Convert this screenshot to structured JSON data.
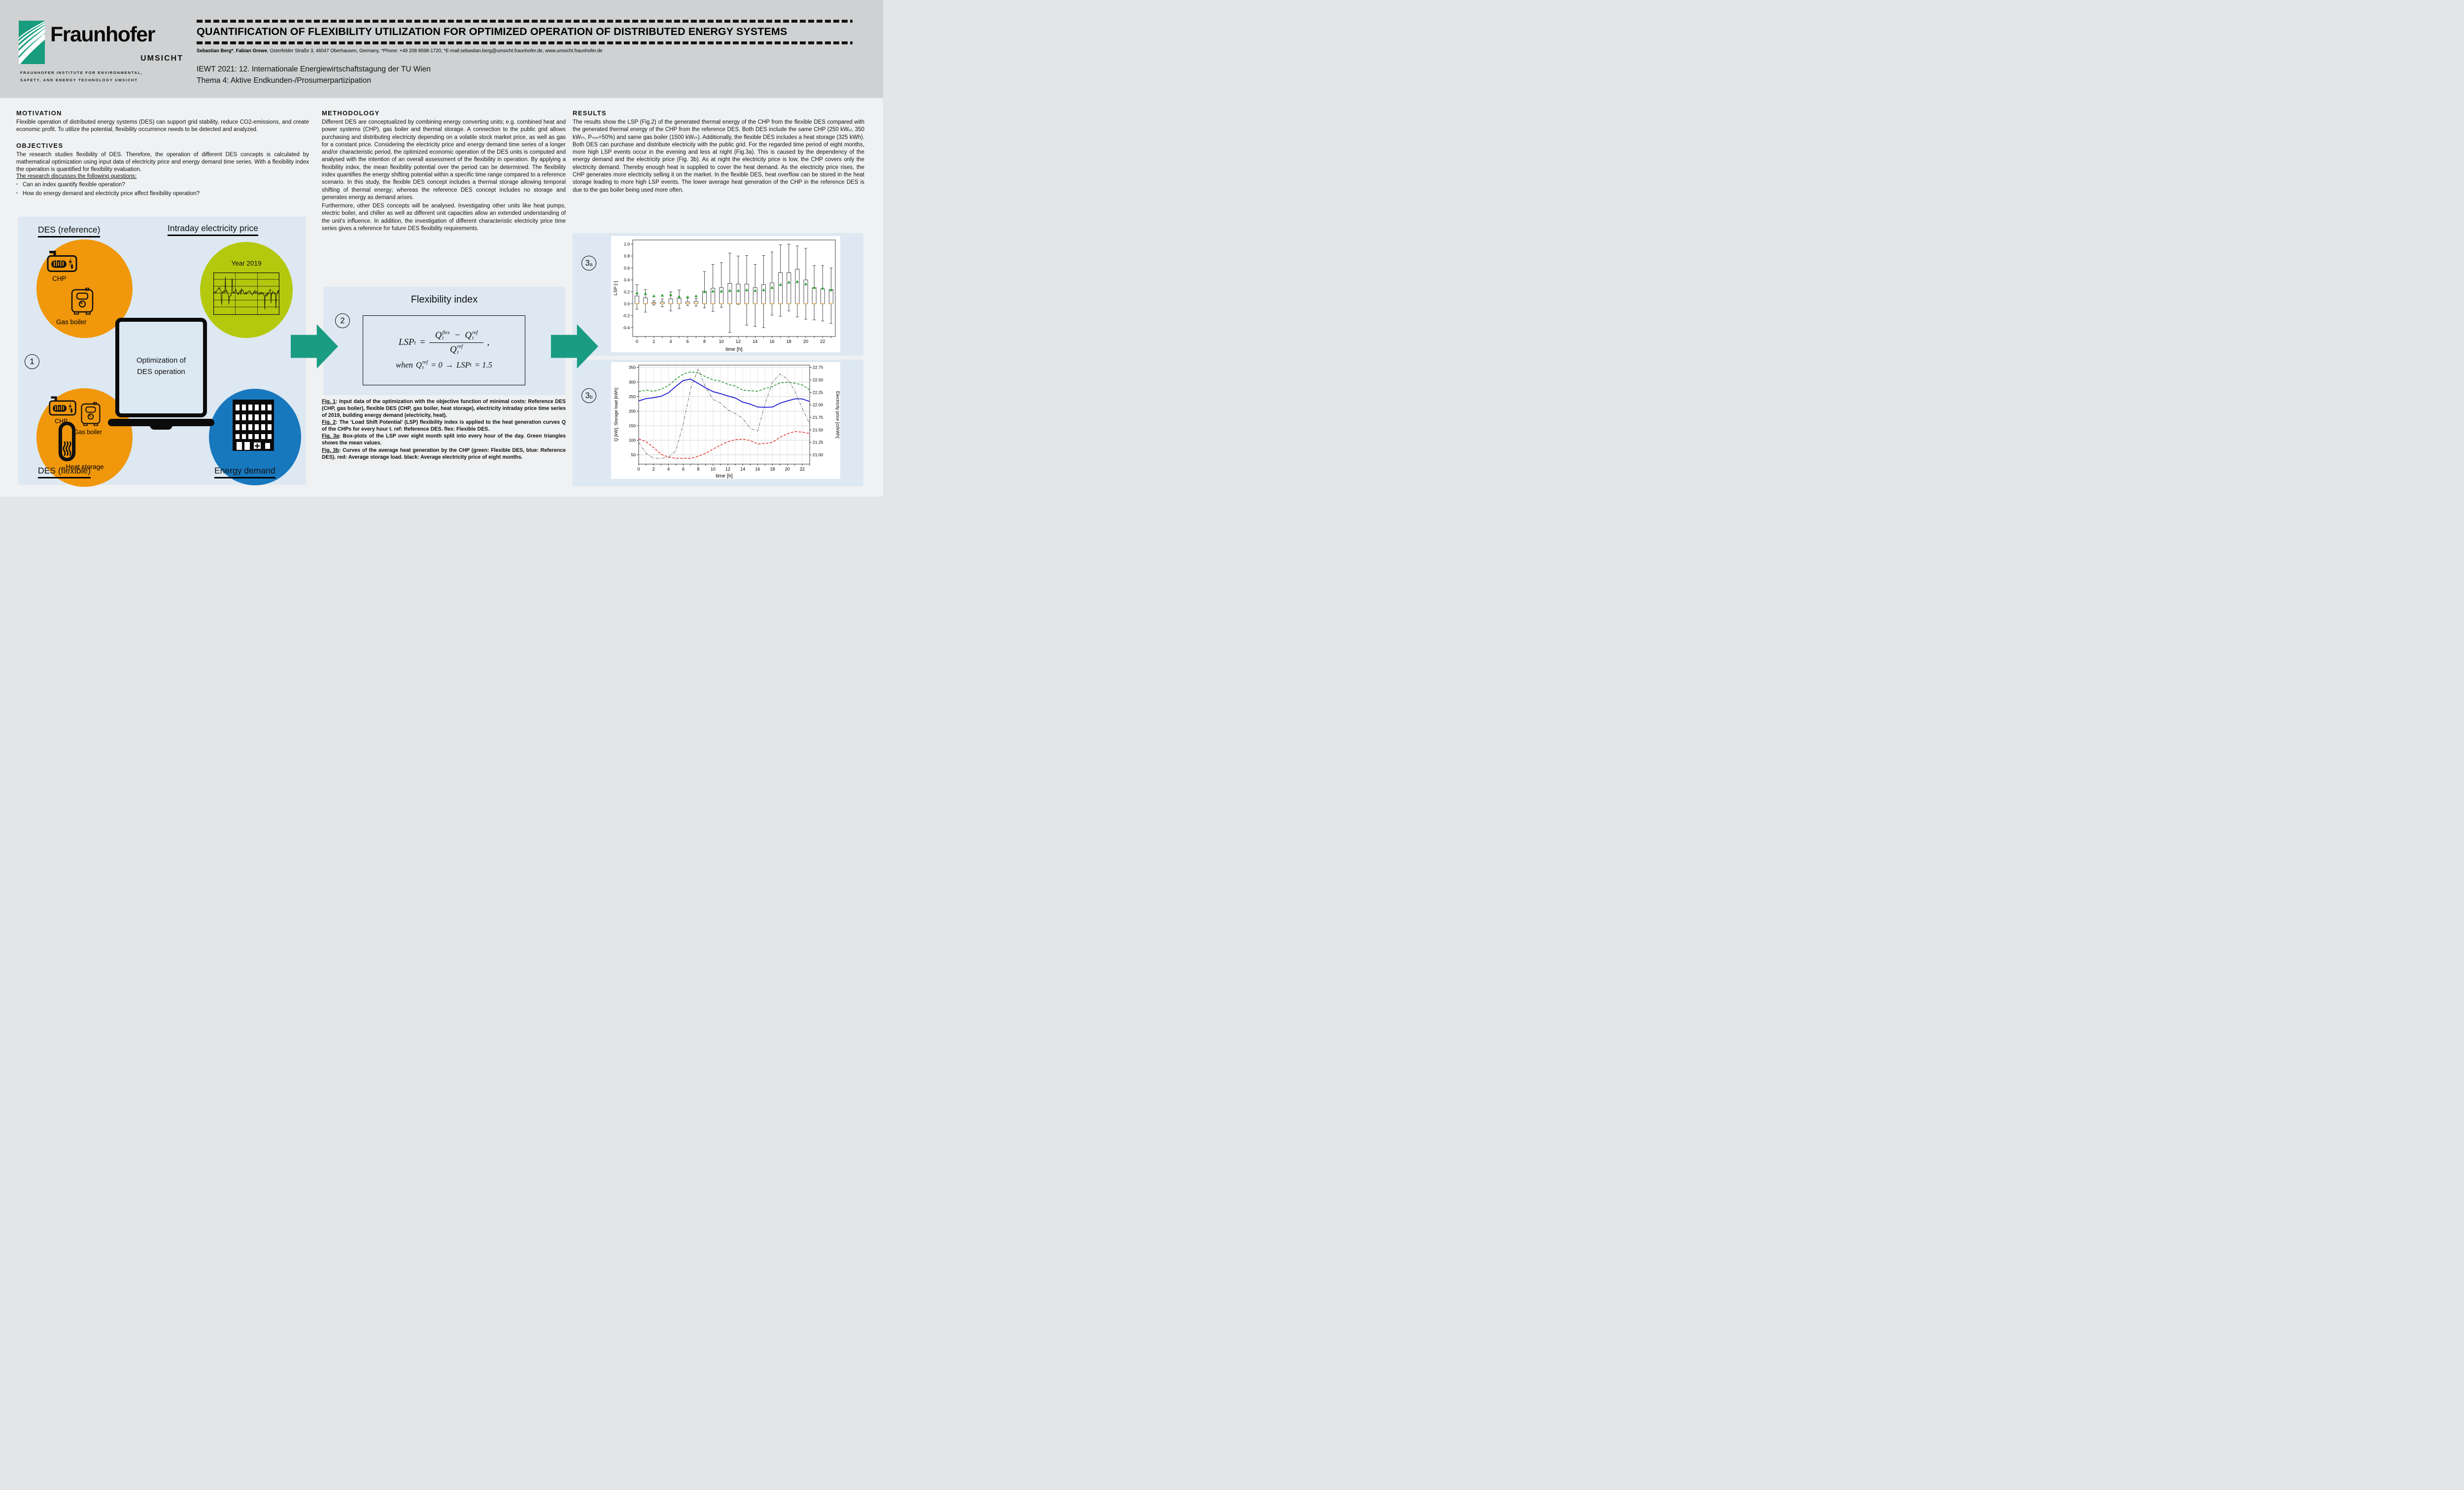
{
  "header": {
    "title": "QUANTIFICATION OF FLEXIBILITY UTILIZATION FOR OPTIMIZED OPERATION OF DISTRIBUTED ENERGY SYSTEMS",
    "author_bold1": "Sebastian Berg*",
    "author_sep": ", ",
    "author_bold2": "Fabian Grewe",
    "authors_rest": ", Osterfelder Straße 3, 46047 Oberhausen, Germany, *Phone: +49 208 8598-1720, *E-mail:sebastian.berg@umsicht.fraunhofer.de, www.umsicht.fraunhofer.de",
    "event_line1": "IEWT 2021: 12. Internationale Energiewirtschaftstagung der TU Wien",
    "event_line2": "Thema 4: Aktive Endkunden-/Prosumerpartizipation",
    "logo": {
      "brand": "Fraunhofer",
      "division": "UMSICHT",
      "institute_line1": "FRAUNHOFER INSTITUTE FOR ENVIRONMENTAL,",
      "institute_line2": "SAFETY, AND ENERGY TECHNOLOGY UMSICHT"
    }
  },
  "sections": {
    "motivation": {
      "heading": "MOTIVATION",
      "body": "Flexible operation of distributed energy systems (DES) can support grid stability, reduce CO2-emissions, and create economic profit. To utilize the potential, flexibility occurrence needs to be detected and analyzed."
    },
    "objectives": {
      "heading": "OBJECTIVES",
      "body": "The research studies flexibility of DES. Therefore, the operation of different DES concepts is calculated by mathematical optimization using input data of electricity price and energy demand time series. With a flexibility index the operation is quantified for flexibility evaluation.",
      "questions_intro": "The research discusses the following questions:",
      "bullets": [
        "Can an index quantify flexible operation?",
        "How do energy demand and electricity price affect flexibility operation?"
      ]
    },
    "methodology": {
      "heading": "METHODOLOGY",
      "body1": "Different DES are conceptualized by combining energy converting units; e.g. combined heat and power systems (CHP), gas boiler and thermal storage. A connection to the public grid allows purchasing and distributing electricity depending on a volatile stock market price, as well as gas for a constant price. Considering the electricity price and energy demand time series of a longer and/or characteristic period, the optimized economic operation of the DES units is computed and analysed with the intention of an overall assessment of the flexibility in operation. By applying a flexibility index, the mean flexibility potential over the period can be determined. The flexibility index quantifies the energy shifting potential within a specific time range compared to a reference scenario. In this study, the flexible DES concept includes a thermal storage allowing temporal shifting of thermal energy; whereas the reference DES concept includes no storage and generates energy as demand arises.",
      "body2": "Furthermore, other DES concepts will be analysed. Investigating other units like heat pumps, electric boiler, and chiller as well as different unit capacities allow an extended understanding of the unit’s influence. In addition, the investigation of different characteristic electricity price time series gives a reference for future DES flexibility requirements."
    },
    "results": {
      "heading": "RESULTS",
      "body": "The results show the LSP (Fig.2) of the generated thermal energy of the CHP from the flexible DES compared with the generated thermal energy of the CHP from the reference DES. Both DES include the same CHP (250 kWₑₗ, 350 kWₜₕ, Pₘᵢₙ=50%) and same gas boiler (1500 kWₜₕ). Additionally, the flexible DES includes a heat storage (325 kWh). Both DES can purchase and distribute electricity with the public grid. For the regarded time period of eight months, more high LSP events occur in the evening and less at night (Fig.3a). This is caused by the dependency of the energy demand and the electricity price (Fig. 3b). As at night the electricity price is low, the CHP covers only the electricity demand. Thereby enough heat is supplied to cover the heat demand. As the electricity price rises, the CHP generates more electricity selling it on the market. In the flexible DES, heat overflow can be stored in the heat storage leading to more high LSP events. The lower average heat generation of the CHP in the reference DES is due to the gas boiler being used more often."
    }
  },
  "figure1": {
    "step_number": "1",
    "des_reference": "DES (reference)",
    "intraday_price": "Intraday electricity price",
    "year_label": "Year 2019",
    "chp_label": "CHP",
    "gas_boiler_label": "Gas boiler",
    "laptop_line1": "Optimization of",
    "laptop_line2": "DES operation",
    "chp2_label": "CHP",
    "gas_boiler2_label": "Gas boiler",
    "heat_storage_label": "Heat storage",
    "des_flexible": "DES (flexible)",
    "energy_demand": "Energy demand"
  },
  "flexibility": {
    "step_number": "2",
    "title": "Flexibility index",
    "f_lhs": "LSP",
    "f_sub_t": "t",
    "f_eq": "=",
    "f_q1": "Q",
    "f_sup_flex": "flex",
    "f_minus": "−",
    "f_q2": "Q",
    "f_sup_ref": "ref",
    "f_comma": ",",
    "cond_when": "when",
    "cond_q": "Q",
    "cond_sup": "ref",
    "cond_sub": "t",
    "cond_eq": "= 0",
    "cond_arrow": "→",
    "cond_lhs": "LSP",
    "cond_sub2": "t",
    "cond_val": "= 1.5"
  },
  "figure3": {
    "label3a_num": "3",
    "label3a_sub": "a",
    "label3b_num": "3",
    "label3b_sub": "b"
  },
  "captions": {
    "fig1_tag": "Fig. 1",
    "fig1_text": ": Input data of the optimization with the objective function of minimal costs: Reference DES (CHP, gas boiler), flexible DES (CHP, gas boiler, heat storage), electricity intraday price time series of 2019, building energy demand (electricity, heat).",
    "fig2_tag": "Fig. 2",
    "fig2_text": ": The ‘Load Shift Potential’ (LSP) flexibility index is applied to the heat generation curves Q of the CHPs for every hour t. ref: Reference DES. flex: Flexible DES.",
    "fig3a_tag": "Fig. 3a",
    "fig3a_text": ": Box-plots of the LSP over eight month split into every hour of the day. Green triangles shows the mean values.",
    "fig3b_tag": "Fig. 3b",
    "fig3b_text": ": Curves of the average heat generation by the CHP (green: Flexible DES, blue: Reference DES). red: Average storage load. black: Average electricity price of eight months."
  },
  "colors": {
    "orange": "#F0970B",
    "olive": "#B4C90E",
    "blue": "#1878BE",
    "teal": "#1A9C82",
    "panel_blue": "#DDE8F2",
    "header_gray": "#CFD1D2",
    "body_bg": "#F0F1F2",
    "fraunhofer_green": "#179C7D",
    "median_orange": "#EF9B28",
    "mean_green": "#2E9E32"
  },
  "chart_data": [
    {
      "id": "fig3a",
      "type": "boxplot",
      "xlabel": "time [h]",
      "ylabel": "LSP [-]",
      "ylim": [
        -0.55,
        1.07
      ],
      "yticks": [
        -0.4,
        -0.2,
        0.0,
        0.2,
        0.4,
        0.6,
        0.8,
        1.0
      ],
      "xticks": [
        0,
        2,
        4,
        6,
        8,
        10,
        12,
        14,
        16,
        18,
        20,
        22
      ],
      "hours": [
        0,
        1,
        2,
        3,
        4,
        5,
        6,
        7,
        8,
        9,
        10,
        11,
        12,
        13,
        14,
        15,
        16,
        17,
        18,
        19,
        20,
        21,
        22,
        23
      ],
      "whisker_low": [
        -0.09,
        -0.14,
        -0.02,
        -0.05,
        -0.12,
        -0.08,
        -0.03,
        -0.04,
        -0.07,
        -0.13,
        -0.06,
        -0.48,
        -0.01,
        -0.36,
        -0.38,
        -0.4,
        -0.19,
        -0.21,
        -0.12,
        -0.22,
        -0.26,
        -0.27,
        -0.29,
        -0.33
      ],
      "q1": [
        0,
        0,
        0,
        0,
        0,
        0,
        0,
        0,
        0,
        0,
        0,
        0,
        0,
        0,
        0,
        0,
        0,
        0,
        0,
        0,
        0,
        0,
        0,
        0
      ],
      "median": [
        0,
        0,
        0,
        0,
        0,
        0,
        0,
        0,
        0,
        0,
        0,
        0,
        0,
        0,
        0,
        0,
        0,
        0,
        0,
        0,
        0,
        0,
        0,
        0
      ],
      "q3": [
        0.13,
        0.1,
        0.02,
        0.03,
        0.08,
        0.09,
        0.03,
        0.04,
        0.21,
        0.26,
        0.27,
        0.34,
        0.33,
        0.33,
        0.27,
        0.32,
        0.35,
        0.52,
        0.52,
        0.58,
        0.4,
        0.27,
        0.25,
        0.24
      ],
      "whisker_high": [
        0.32,
        0.24,
        0.05,
        0.08,
        0.2,
        0.23,
        0.11,
        0.09,
        0.54,
        0.66,
        0.69,
        0.85,
        0.8,
        0.81,
        0.66,
        0.81,
        0.87,
        0.99,
        1.0,
        0.97,
        0.93,
        0.64,
        0.64,
        0.6
      ],
      "mean": [
        0.18,
        0.17,
        0.13,
        0.14,
        0.15,
        0.12,
        0.11,
        0.13,
        0.2,
        0.21,
        0.21,
        0.22,
        0.22,
        0.23,
        0.22,
        0.23,
        0.27,
        0.32,
        0.36,
        0.37,
        0.33,
        0.27,
        0.26,
        0.23
      ]
    },
    {
      "id": "fig3b",
      "type": "line",
      "xlabel": "time [h]",
      "ylabel_left": "Q [kW], Storage load [kWh]",
      "ylabel_right": "Electricity price [ct/kWh]",
      "ylim_left": [
        18,
        358
      ],
      "yticks_left": [
        50,
        100,
        150,
        200,
        250,
        300,
        350
      ],
      "yticks_right": [
        21.0,
        21.25,
        21.5,
        21.75,
        22.0,
        22.25,
        22.5,
        22.75
      ],
      "right_axis_map": {
        "price_at_q50": 21.0,
        "price_at_q350": 22.75
      },
      "x": [
        0,
        1,
        2,
        3,
        4,
        5,
        6,
        7,
        8,
        9,
        10,
        11,
        12,
        13,
        14,
        15,
        16,
        17,
        18,
        19,
        20,
        21,
        22,
        23
      ],
      "xticks": [
        0,
        2,
        4,
        6,
        8,
        10,
        12,
        14,
        16,
        18,
        20,
        22
      ],
      "series": [
        {
          "name": "CHP heat generation – Flexible DES",
          "color": "#2E9932",
          "style": "dashed",
          "axis": "left",
          "values": [
            267,
            272,
            268,
            275,
            288,
            310,
            327,
            335,
            331,
            318,
            307,
            303,
            292,
            286,
            272,
            270,
            268,
            278,
            284,
            297,
            299,
            296,
            290,
            273
          ]
        },
        {
          "name": "CHP heat generation – Reference DES",
          "color": "#2424D6",
          "style": "solid",
          "axis": "left",
          "values": [
            235,
            243,
            246,
            251,
            263,
            285,
            305,
            310,
            295,
            280,
            267,
            260,
            252,
            245,
            231,
            224,
            214,
            213,
            214,
            227,
            235,
            242,
            242,
            233
          ]
        },
        {
          "name": "Average storage load",
          "color": "#E03C31",
          "style": "dashed",
          "axis": "left",
          "values": [
            105,
            95,
            75,
            52,
            42,
            38,
            38,
            38,
            45,
            55,
            70,
            83,
            95,
            102,
            104,
            99,
            87,
            89,
            93,
            110,
            122,
            130,
            128,
            123
          ]
        },
        {
          "name": "Average electricity price",
          "color": "#474747",
          "style": "dashdot",
          "axis": "right",
          "values": [
            21.25,
            21.03,
            20.93,
            20.93,
            20.95,
            21.08,
            21.62,
            22.33,
            22.72,
            22.35,
            22.11,
            22.04,
            21.9,
            21.83,
            21.73,
            21.53,
            21.47,
            22.02,
            22.46,
            22.62,
            22.52,
            22.28,
            21.93,
            21.62
          ]
        }
      ]
    },
    {
      "id": "intraday-mini",
      "type": "line",
      "decorative": true,
      "title": "Year 2019",
      "note": "stylized intraday electricity price time series inside Fig. 1",
      "seed": 7
    }
  ]
}
